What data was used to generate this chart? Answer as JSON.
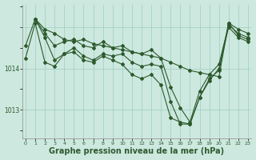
{
  "background_color": "#cde8df",
  "grid_color_major": "#a8d5c8",
  "grid_color_minor": "#b8ddd2",
  "line_color": "#2d5a2d",
  "xlabel": "Graphe pression niveau de la mer (hPa)",
  "xlabel_fontsize": 7,
  "ylabel_ticks": [
    1013,
    1014
  ],
  "xlim": [
    -0.3,
    23.3
  ],
  "ylim": [
    1012.3,
    1015.55
  ],
  "xtick_labels": [
    "0",
    "1",
    "2",
    "3",
    "4",
    "5",
    "6",
    "7",
    "8",
    "9",
    "10",
    "11",
    "12",
    "13",
    "14",
    "15",
    "16",
    "17",
    "18",
    "19",
    "20",
    "21",
    "22",
    "23"
  ],
  "series": [
    {
      "x": [
        0,
        1,
        2,
        3,
        4,
        5,
        6,
        7,
        8,
        9,
        10,
        11,
        12,
        13,
        14,
        15,
        16,
        17,
        18,
        19,
        20,
        21,
        22,
        23
      ],
      "y": [
        1014.55,
        1015.2,
        1014.95,
        1014.85,
        1014.7,
        1014.65,
        1014.7,
        1014.6,
        1014.55,
        1014.5,
        1014.45,
        1014.4,
        1014.35,
        1014.3,
        1014.25,
        1014.15,
        1014.05,
        1013.95,
        1013.9,
        1013.85,
        1013.8,
        1015.1,
        1014.95,
        1014.85
      ]
    },
    {
      "x": [
        1,
        2,
        3,
        4,
        5,
        6,
        7,
        8,
        9,
        10,
        11,
        12,
        13,
        14,
        15,
        16,
        17,
        18,
        19,
        20,
        21,
        22,
        23
      ],
      "y": [
        1015.2,
        1014.85,
        1014.55,
        1014.65,
        1014.7,
        1014.55,
        1014.5,
        1014.65,
        1014.5,
        1014.55,
        1014.4,
        1014.35,
        1014.45,
        1014.25,
        1013.55,
        1013.05,
        1012.7,
        1013.45,
        1013.85,
        1014.1,
        1015.05,
        1014.85,
        1014.75
      ]
    },
    {
      "x": [
        1,
        2,
        3,
        4,
        5,
        6,
        7,
        8,
        9,
        10,
        11,
        12,
        13,
        14,
        15,
        16,
        17,
        18,
        19,
        20,
        21,
        22,
        23
      ],
      "y": [
        1015.2,
        1014.75,
        1014.2,
        1014.35,
        1014.5,
        1014.3,
        1014.2,
        1014.35,
        1014.3,
        1014.35,
        1014.15,
        1014.05,
        1014.1,
        1014.05,
        1013.2,
        1012.65,
        1012.65,
        1013.3,
        1013.75,
        1013.95,
        1015.1,
        1014.8,
        1014.7
      ]
    },
    {
      "x": [
        0,
        1,
        2,
        3,
        4,
        5,
        6,
        7,
        8,
        9,
        10,
        11,
        12,
        13,
        14,
        15,
        16,
        17,
        18,
        19,
        20,
        21,
        22,
        23
      ],
      "y": [
        1014.25,
        1015.1,
        1014.15,
        1014.05,
        1014.35,
        1014.4,
        1014.2,
        1014.15,
        1014.3,
        1014.2,
        1014.1,
        1013.85,
        1013.75,
        1013.85,
        1013.6,
        1012.8,
        1012.7,
        1012.65,
        1013.3,
        1013.7,
        1014.0,
        1015.0,
        1014.75,
        1014.65
      ]
    }
  ]
}
